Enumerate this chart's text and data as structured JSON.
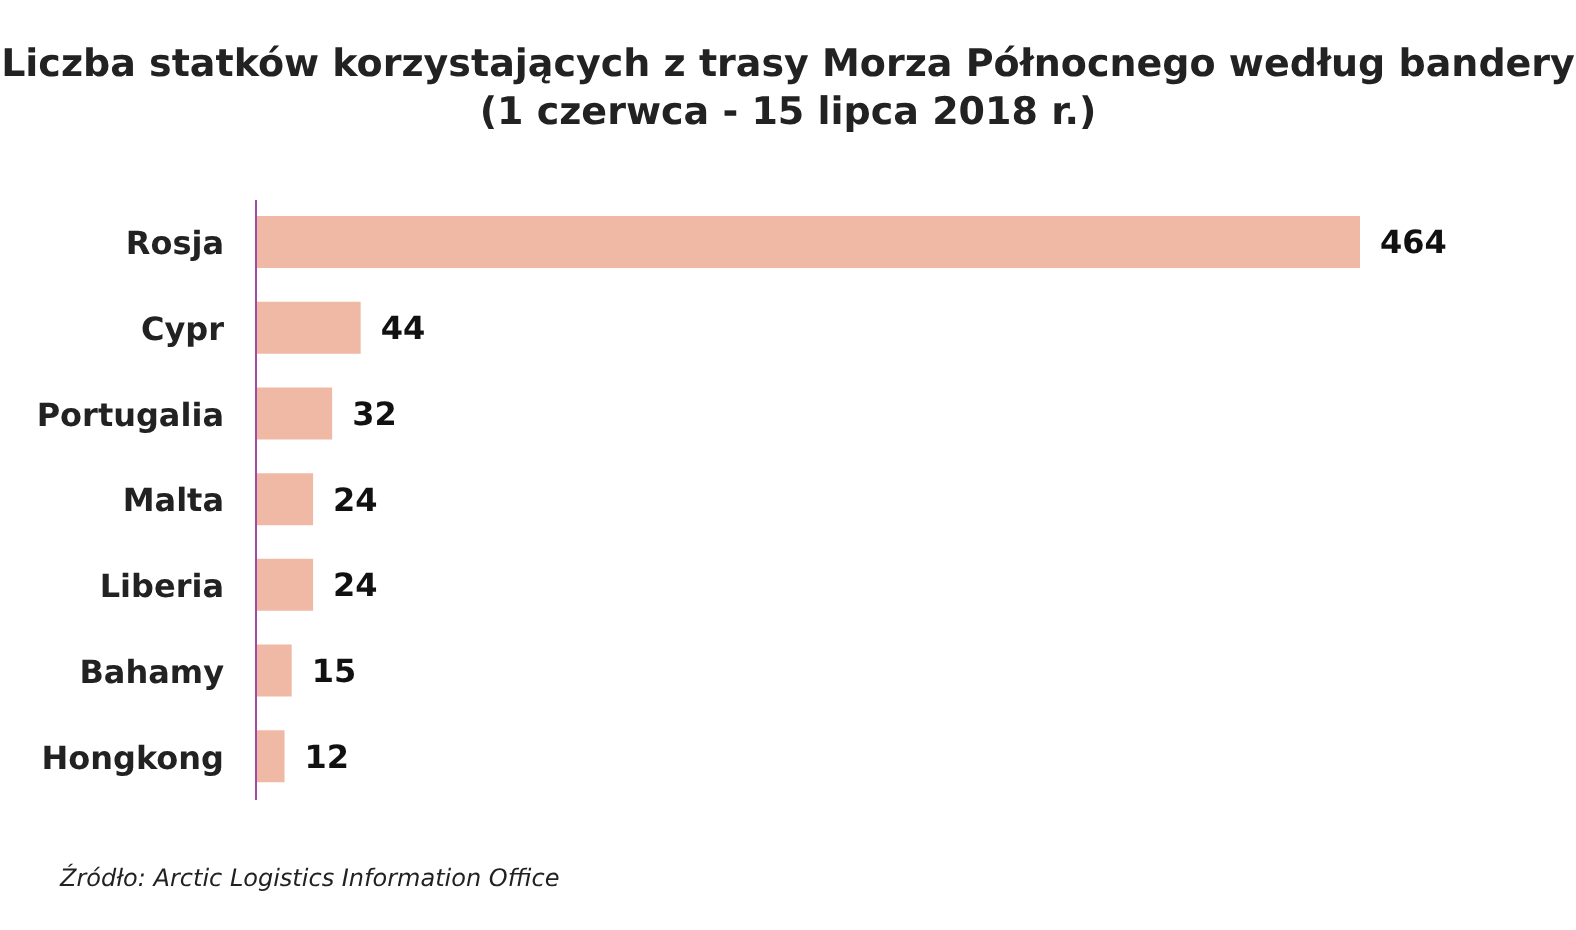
{
  "chart_data": {
    "type": "bar",
    "orientation": "horizontal",
    "title": "Liczba statków korzystających z trasy Morza Północnego według bandery\n(1 czerwca - 15 lipca 2018 r.)",
    "categories": [
      "Rosja",
      "Cypr",
      "Portugalia",
      "Malta",
      "Liberia",
      "Bahamy",
      "Hongkong"
    ],
    "values": [
      464,
      44,
      32,
      24,
      24,
      15,
      12
    ],
    "color": "#f0b9a6",
    "data_labels": true,
    "grid": false,
    "legend": false,
    "annotations": [
      "Źródło: Arctic Logistics Information Office"
    ]
  }
}
